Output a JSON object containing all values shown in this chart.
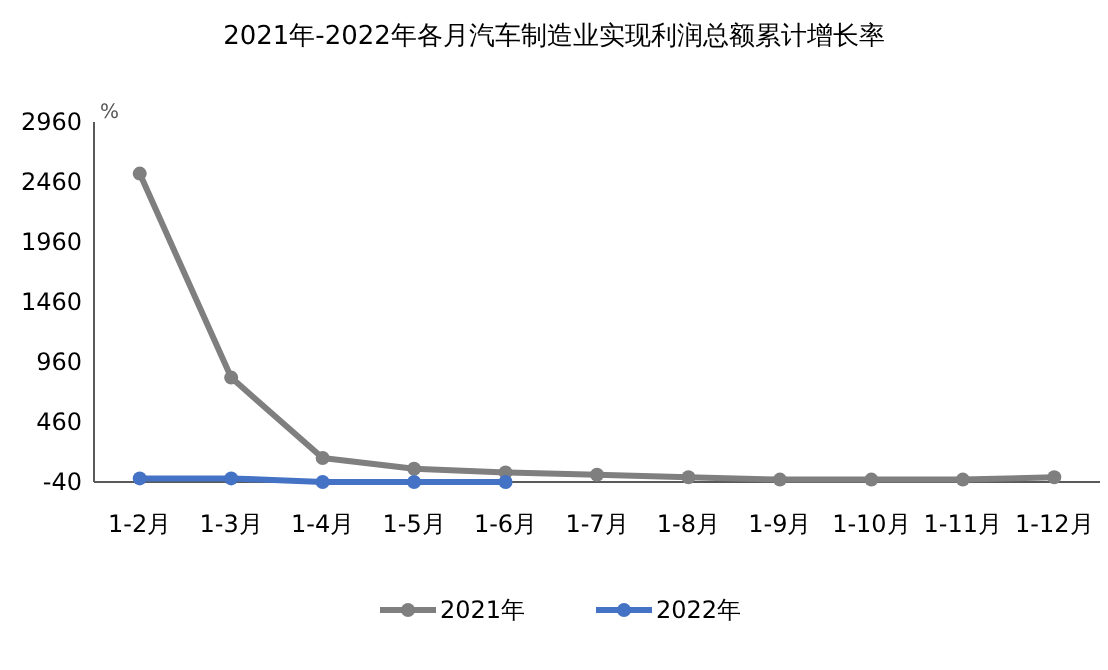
{
  "chart_data": {
    "type": "line",
    "title": "2021年-2022年各月汽车制造业实现利润总额累计增长率",
    "ylabel": "%",
    "categories": [
      "1-2月",
      "1-3月",
      "1-4月",
      "1-5月",
      "1-6月",
      "1-7月",
      "1-8月",
      "1-9月",
      "1-10月",
      "1-11月",
      "1-12月"
    ],
    "ylim": [
      -40,
      2960
    ],
    "yticks": [
      -40,
      460,
      960,
      1460,
      1960,
      2460,
      2960
    ],
    "grid": false,
    "legend": "bottom",
    "marker": "circle",
    "line_style": "solid",
    "series": [
      {
        "name": "2021年",
        "color": "#7f7f7f",
        "values": [
          2530,
          830,
          160,
          70,
          40,
          20,
          0,
          -20,
          -20,
          -20,
          0
        ]
      },
      {
        "name": "2022年",
        "color": "#4472c4",
        "values": [
          -10,
          -10,
          -40,
          -40,
          -40,
          null,
          null,
          null,
          null,
          null,
          null
        ]
      }
    ]
  }
}
